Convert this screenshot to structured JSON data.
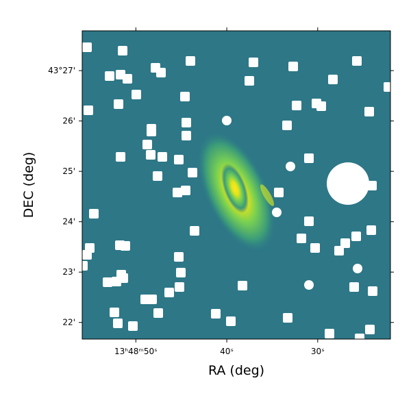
{
  "chart_data": {
    "type": "image",
    "xlabel": "RA (deg)",
    "ylabel": "DEC (deg)",
    "xlim": [
      55.9,
      22.0
    ],
    "xticks": [
      {
        "value": 50,
        "label": "13ʰ48ᵐ50ˢ"
      },
      {
        "value": 40,
        "label": "40ˢ"
      },
      {
        "value": 30,
        "label": "30ˢ"
      }
    ],
    "ylim": [
      21.67,
      27.79
    ],
    "yticks": [
      {
        "value": 27,
        "label": "43°27'"
      },
      {
        "value": 26,
        "label": "26'"
      },
      {
        "value": 25,
        "label": "25'"
      },
      {
        "value": 24,
        "label": "24'"
      },
      {
        "value": 23,
        "label": "23'"
      },
      {
        "value": 22,
        "label": "22'"
      }
    ]
  }
}
